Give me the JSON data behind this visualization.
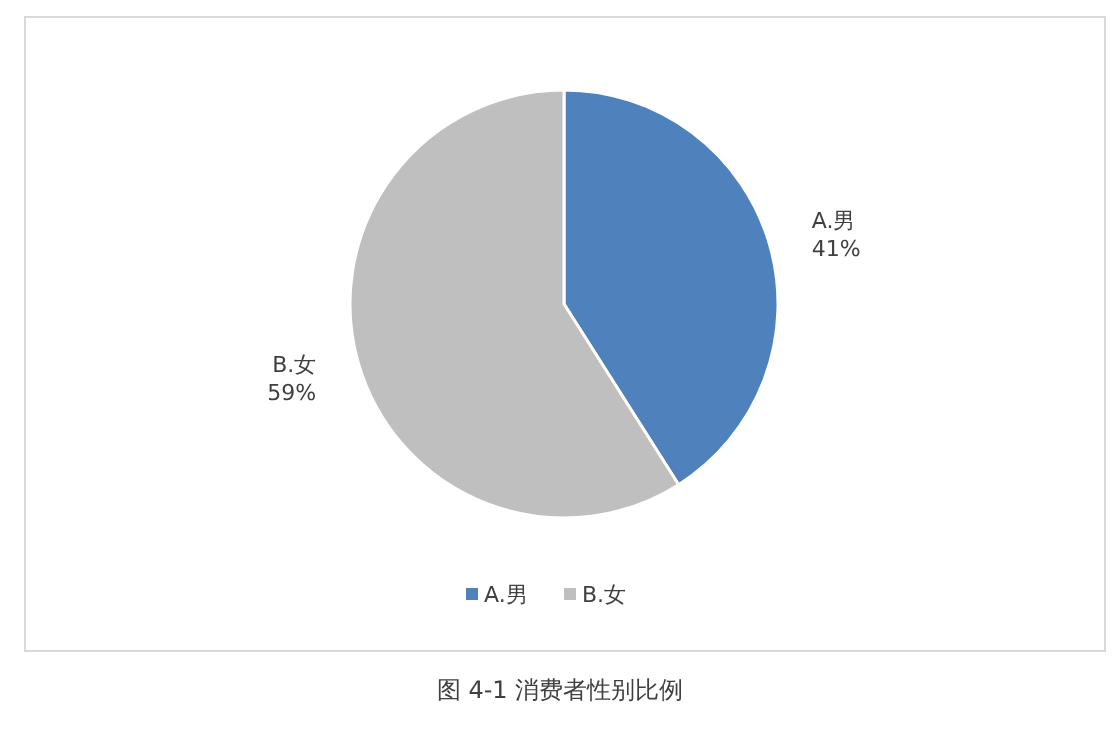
{
  "chart_data": {
    "type": "pie",
    "categories": [
      "A.男",
      "B.女"
    ],
    "values": [
      41,
      59
    ],
    "colors": [
      "#4f81bd",
      "#bfbfbf"
    ],
    "value_labels": [
      "41%",
      "59%"
    ],
    "legend": "bottom",
    "annotations": [
      "图 4-1 消费者性别比例"
    ]
  }
}
